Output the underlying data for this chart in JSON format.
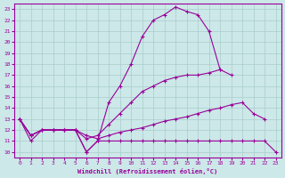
{
  "xlabel": "Windchill (Refroidissement éolien,°C)",
  "bg_color": "#cce8e8",
  "grid_color": "#aacccc",
  "line_color": "#990099",
  "xlim": [
    -0.5,
    23.5
  ],
  "ylim": [
    9.5,
    23.5
  ],
  "yticks": [
    10,
    11,
    12,
    13,
    14,
    15,
    16,
    17,
    18,
    19,
    20,
    21,
    22,
    23
  ],
  "xticks": [
    0,
    1,
    2,
    3,
    4,
    5,
    6,
    7,
    8,
    9,
    10,
    11,
    12,
    13,
    14,
    15,
    16,
    17,
    18,
    19,
    20,
    21,
    22,
    23
  ],
  "lines": [
    {
      "x": [
        0,
        1,
        2,
        3,
        4,
        5,
        6,
        7,
        8,
        9,
        10,
        11,
        12,
        13,
        14,
        15,
        16,
        17,
        18,
        19,
        20,
        21,
        22,
        23
      ],
      "y": [
        13,
        11,
        12,
        12,
        12,
        12,
        10,
        11,
        14.5,
        16,
        18,
        20.5,
        22,
        22.5,
        23.2,
        22.8,
        22.5,
        21,
        17.5,
        null,
        null,
        null,
        null,
        null
      ]
    },
    {
      "x": [
        0,
        1,
        2,
        3,
        4,
        5,
        6,
        7,
        8,
        9,
        10,
        11,
        12,
        13,
        14,
        15,
        16,
        17,
        18,
        19,
        20,
        21,
        22,
        23
      ],
      "y": [
        13,
        11.5,
        12,
        12,
        12,
        12,
        11.2,
        11.5,
        12.5,
        13.5,
        14.5,
        15.5,
        16,
        16.5,
        16.8,
        17,
        17,
        17.2,
        17.5,
        17,
        null,
        null,
        null,
        null
      ]
    },
    {
      "x": [
        0,
        1,
        2,
        3,
        4,
        5,
        6,
        7,
        8,
        9,
        10,
        11,
        12,
        13,
        14,
        15,
        16,
        17,
        18,
        19,
        20,
        21,
        22,
        23
      ],
      "y": [
        13,
        11.5,
        12,
        12,
        12,
        12,
        11.5,
        11.2,
        11.5,
        11.8,
        12,
        12.2,
        12.5,
        12.8,
        13,
        13.2,
        13.5,
        13.8,
        14,
        14.3,
        14.5,
        13.5,
        13,
        null
      ]
    },
    {
      "x": [
        0,
        1,
        2,
        3,
        4,
        5,
        6,
        7,
        8,
        9,
        10,
        11,
        12,
        13,
        14,
        15,
        16,
        17,
        18,
        19,
        20,
        21,
        22,
        23
      ],
      "y": [
        13,
        11.5,
        12,
        12,
        12,
        12,
        10,
        11,
        11,
        11,
        11,
        11,
        11,
        11,
        11,
        11,
        11,
        11,
        11,
        11,
        11,
        11,
        11,
        10
      ]
    }
  ]
}
